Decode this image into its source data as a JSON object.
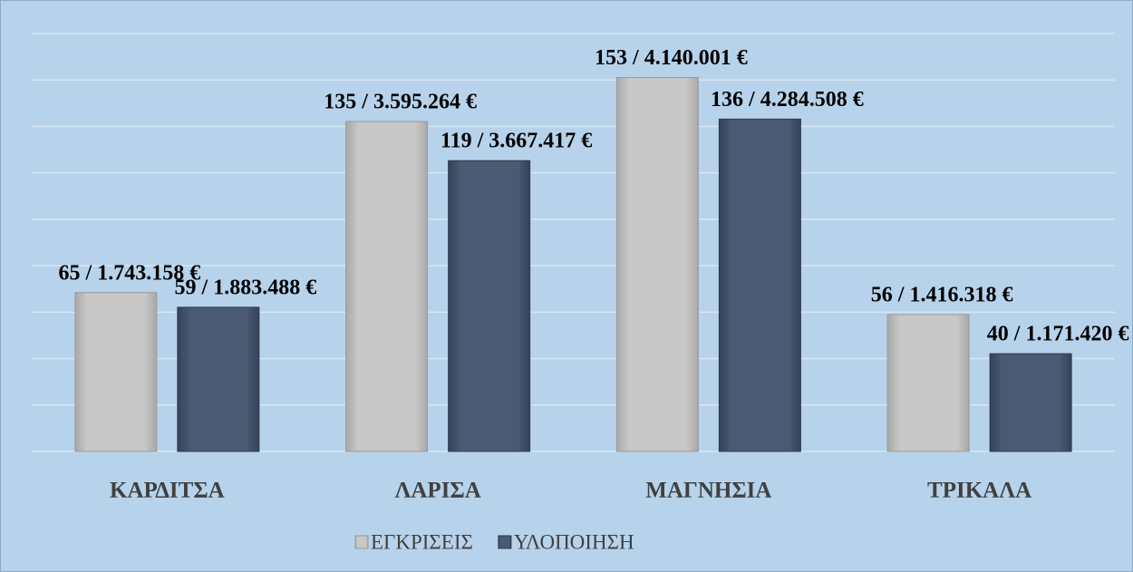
{
  "chart_data": {
    "type": "bar",
    "categories": [
      "ΚΑΡΔΙΤΣΑ",
      "ΛΑΡΙΣΑ",
      "ΜΑΓΝΗΣΙΑ",
      "ΤΡΙΚΑΛΑ"
    ],
    "series": [
      {
        "name": "ΕΓΚΡΙΣΕΙΣ",
        "color": "#c4c4c4",
        "values": [
          65,
          135,
          153,
          56
        ],
        "value_labels": [
          "65 / 1.743.158 €",
          "135 / 3.595.264 €",
          "153 / 4.140.001 €",
          "56 / 1.416.318 €"
        ]
      },
      {
        "name": "ΥΛΟΠΟΙΗΣΗ",
        "color": "#44546a",
        "values": [
          59,
          119,
          136,
          40
        ],
        "value_labels": [
          "59 / 1.883.488 €",
          "119 / 3.667.417 €",
          "136 / 4.284.508 €",
          "40 / 1.171.420 €"
        ]
      }
    ],
    "ylim": [
      0,
      171
    ],
    "yticks": [
      0,
      19,
      38,
      57,
      76,
      95,
      114,
      133,
      152,
      171
    ],
    "grid": true,
    "legend": "bottom"
  }
}
